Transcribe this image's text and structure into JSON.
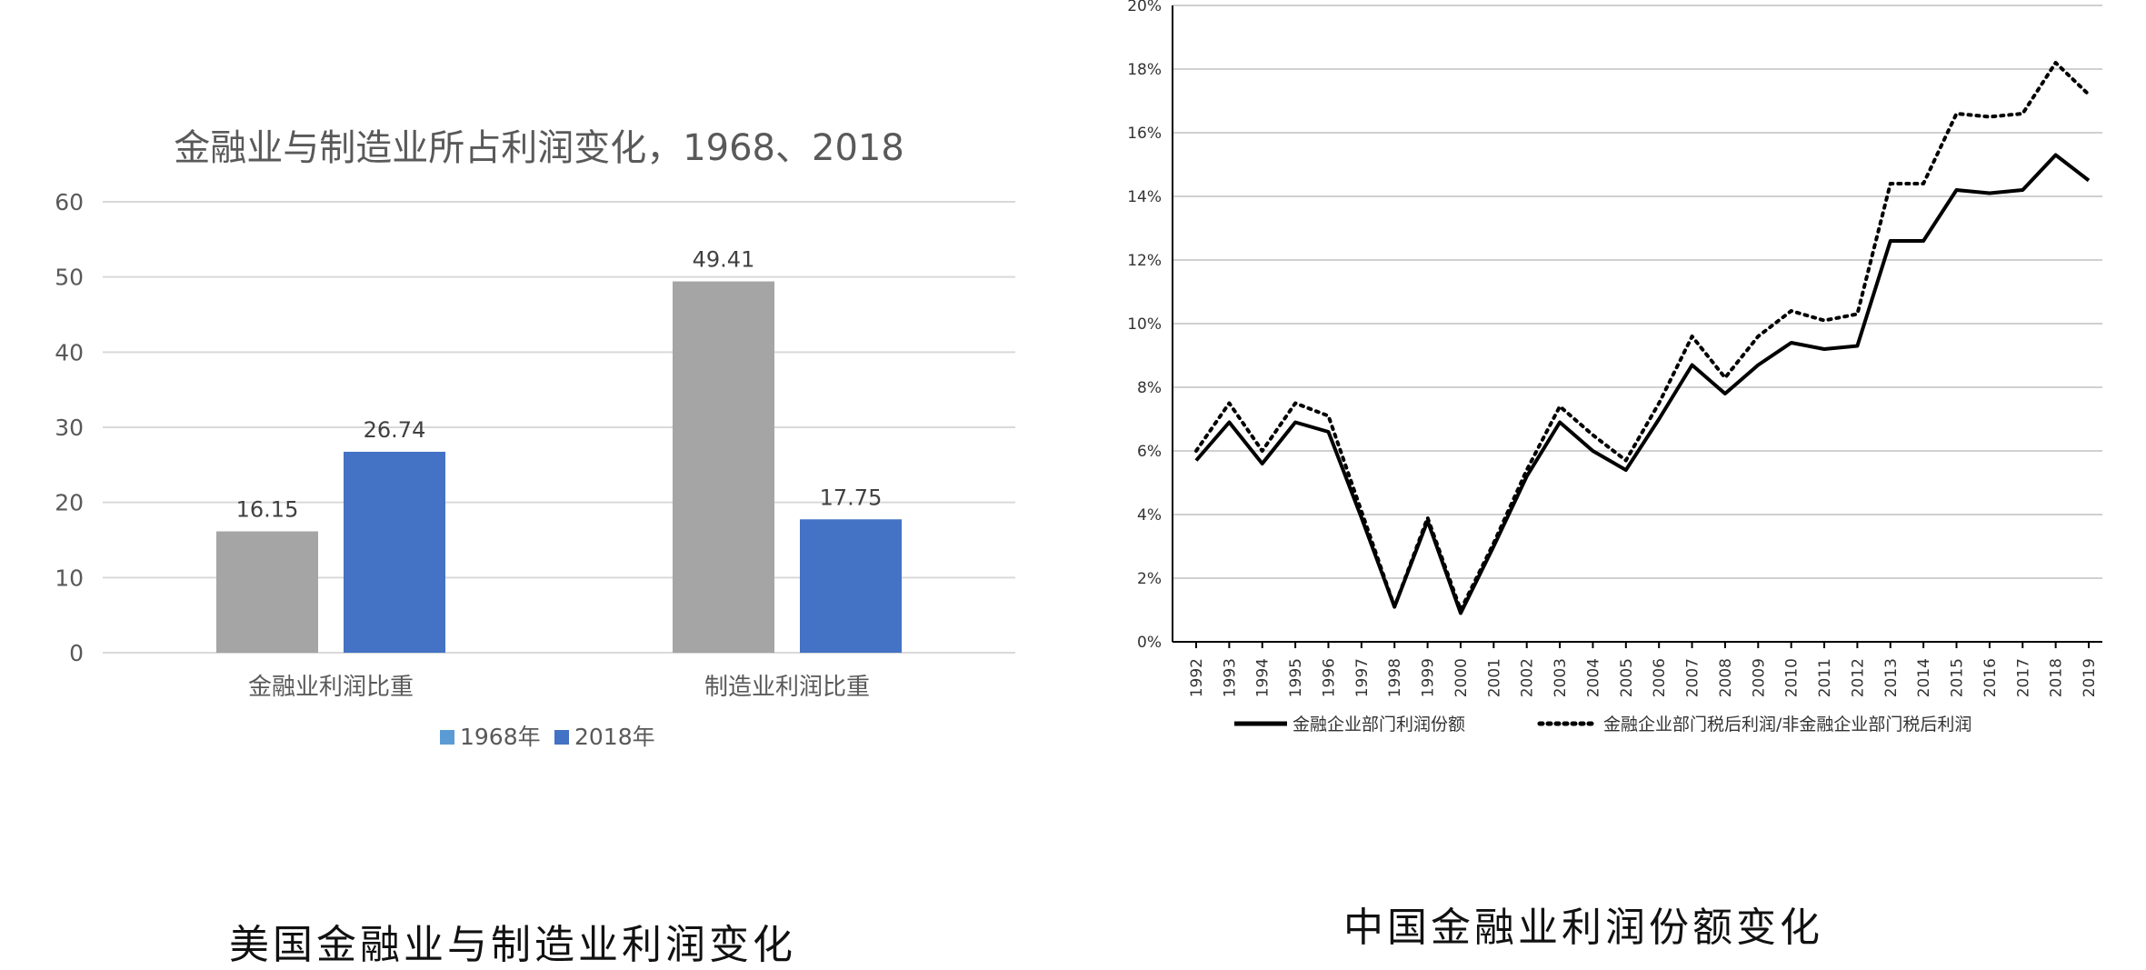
{
  "captions": {
    "left": "美国金融业与制造业利润变化",
    "right": "中国金融业利润份额变化"
  },
  "chart_data": [
    {
      "type": "bar",
      "title": "金融业与制造业所占利润变化，1968、2018",
      "categories": [
        "金融业利润比重",
        "制造业利润比重"
      ],
      "series": [
        {
          "name": "1968年",
          "values": [
            16.15,
            49.41
          ],
          "color": "#a5a5a5",
          "legend_color": "#5b9bd5"
        },
        {
          "name": "2018年",
          "values": [
            26.74,
            17.75
          ],
          "color": "#4472c4",
          "legend_color": "#4472c4"
        }
      ],
      "data_labels": [
        [
          "16.15",
          "49.41"
        ],
        [
          "26.74",
          "17.75"
        ]
      ],
      "yticks": [
        "0",
        "10",
        "20",
        "30",
        "40",
        "50",
        "60"
      ],
      "ylim": [
        0,
        60
      ],
      "grid": true,
      "legend_position": "bottom",
      "colors": {
        "grid": "#d9d9d9",
        "text": "#595959",
        "title": "#595959"
      }
    },
    {
      "type": "line",
      "x": [
        "1992",
        "1993",
        "1994",
        "1995",
        "1996",
        "1997",
        "1998",
        "1999",
        "2000",
        "2001",
        "2002",
        "2003",
        "2004",
        "2005",
        "2006",
        "2007",
        "2008",
        "2009",
        "2010",
        "2011",
        "2012",
        "2013",
        "2014",
        "2015",
        "2016",
        "2017",
        "2018",
        "2019"
      ],
      "series": [
        {
          "name": "金融企业部门利润份额",
          "style": "solid",
          "values": [
            5.7,
            6.9,
            5.6,
            6.9,
            6.6,
            3.9,
            1.1,
            3.8,
            0.9,
            3.0,
            5.2,
            6.9,
            6.0,
            5.4,
            7.0,
            8.7,
            7.8,
            8.7,
            9.4,
            9.2,
            9.3,
            12.6,
            12.6,
            14.2,
            14.1,
            14.2,
            15.3,
            14.5
          ]
        },
        {
          "name": "金融企业部门税后利润/非金融企业部门税后利润",
          "style": "dotted",
          "values": [
            6.0,
            7.5,
            6.0,
            7.5,
            7.1,
            4.1,
            1.1,
            3.9,
            1.0,
            3.1,
            5.4,
            7.4,
            6.5,
            5.7,
            7.5,
            9.6,
            8.3,
            9.6,
            10.4,
            10.1,
            10.3,
            14.4,
            14.4,
            16.6,
            16.5,
            16.6,
            18.2,
            17.2
          ]
        }
      ],
      "yticks": [
        "0%",
        "2%",
        "4%",
        "6%",
        "8%",
        "10%",
        "12%",
        "14%",
        "16%",
        "18%",
        "20%"
      ],
      "ylim": [
        0,
        20
      ],
      "grid": true,
      "legend_position": "bottom",
      "colors": {
        "line": "#000000",
        "grid": "#d0d0d0",
        "text": "#333333"
      }
    }
  ]
}
